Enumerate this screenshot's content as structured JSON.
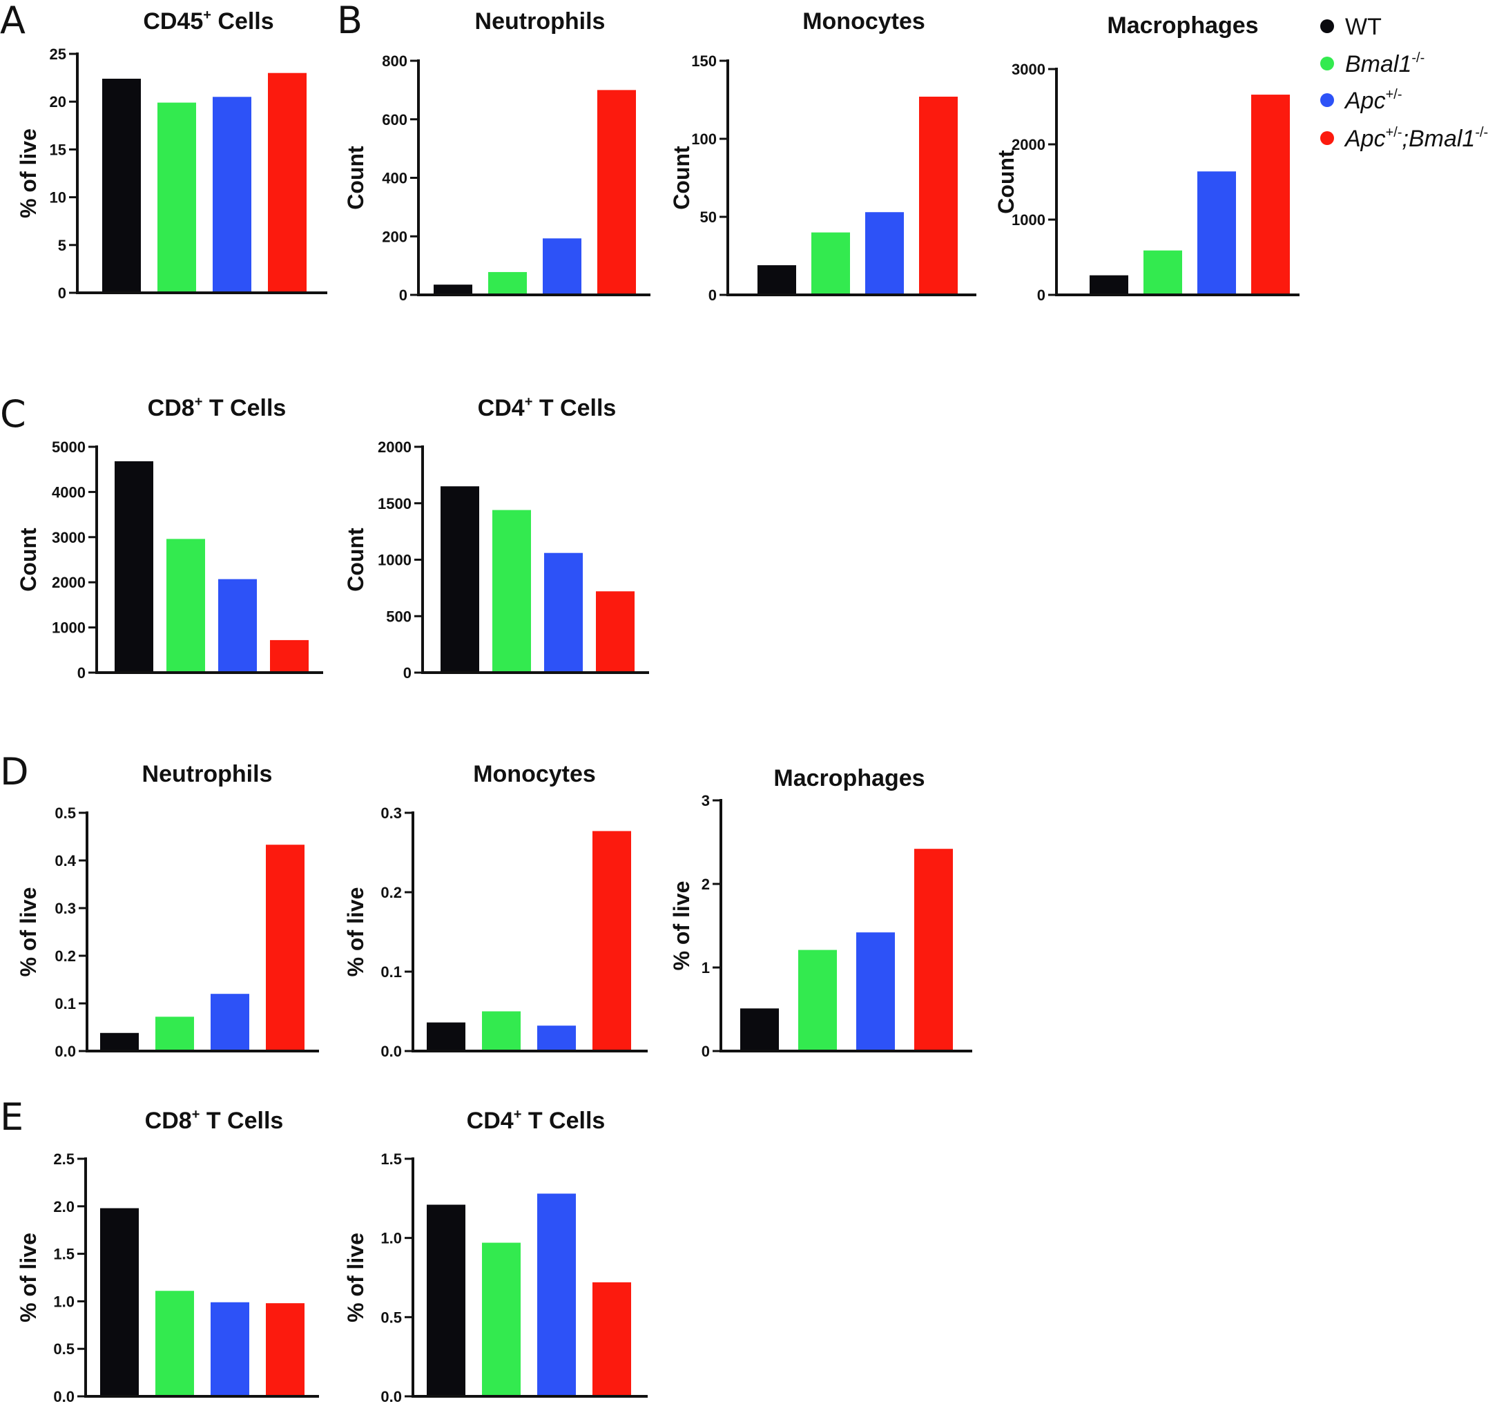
{
  "figure": {
    "panel_letters": [
      "A",
      "B",
      "C",
      "D",
      "E"
    ]
  },
  "legend": {
    "entries": [
      {
        "name": "WT",
        "parts": [
          {
            "t": "WT",
            "s": "n"
          }
        ],
        "color": "#0a0a0e"
      },
      {
        "name": "Bmal1-/-",
        "parts": [
          {
            "t": "Bmal1",
            "s": "i"
          },
          {
            "t": "-/-",
            "s": "sup"
          }
        ],
        "color": "#33ea4f"
      },
      {
        "name": "Apc+/-",
        "parts": [
          {
            "t": "Apc",
            "s": "i"
          },
          {
            "t": "+/-",
            "s": "sup"
          }
        ],
        "color": "#2d52f7"
      },
      {
        "name": "Apc+/-;Bmal1-/-",
        "parts": [
          {
            "t": "Apc",
            "s": "i"
          },
          {
            "t": "+/-",
            "s": "sup"
          },
          {
            "t": ";Bmal1",
            "s": "i"
          },
          {
            "t": "-/-",
            "s": "sup"
          }
        ],
        "color": "#fc1a0e"
      }
    ]
  },
  "chart_data": [
    {
      "id": "A-CD45",
      "panel": "A",
      "type": "bar",
      "title": {
        "main": "CD45",
        "sup": "+",
        "rest": " Cells"
      },
      "xlabel": "",
      "ylabel": "% of live",
      "categories": [
        "WT",
        "Bmal1-/-",
        "Apc+/-",
        "Apc+/-;Bmal1-/-"
      ],
      "values": [
        22.4,
        19.9,
        20.5,
        23.0
      ],
      "ylim": [
        0,
        25
      ],
      "yticks": [
        "0",
        "5",
        "10",
        "15",
        "20",
        "25"
      ],
      "colors": [
        "#0a0a0e",
        "#33ea4f",
        "#2d52f7",
        "#fc1a0e"
      ]
    },
    {
      "id": "B-Neutrophils",
      "panel": "B",
      "type": "bar",
      "title": {
        "main": "Neutrophils",
        "sup": "",
        "rest": ""
      },
      "xlabel": "",
      "ylabel": "Count",
      "categories": [
        "WT",
        "Bmal1-/-",
        "Apc+/-",
        "Apc+/-;Bmal1-/-"
      ],
      "values": [
        35,
        78,
        193,
        700
      ],
      "ylim": [
        0,
        800
      ],
      "yticks": [
        "0",
        "200",
        "400",
        "600",
        "800"
      ],
      "colors": [
        "#0a0a0e",
        "#33ea4f",
        "#2d52f7",
        "#fc1a0e"
      ]
    },
    {
      "id": "B-Monocytes",
      "panel": "B",
      "type": "bar",
      "title": {
        "main": "Monocytes",
        "sup": "",
        "rest": ""
      },
      "xlabel": "",
      "ylabel": "Count",
      "categories": [
        "WT",
        "Bmal1-/-",
        "Apc+/-",
        "Apc+/-;Bmal1-/-"
      ],
      "values": [
        19,
        40,
        53,
        127
      ],
      "ylim": [
        0,
        150
      ],
      "yticks": [
        "0",
        "50",
        "100",
        "150"
      ],
      "colors": [
        "#0a0a0e",
        "#33ea4f",
        "#2d52f7",
        "#fc1a0e"
      ]
    },
    {
      "id": "B-Macrophages",
      "panel": "B",
      "type": "bar",
      "title": {
        "main": "Macrophages",
        "sup": "",
        "rest": ""
      },
      "xlabel": "",
      "ylabel": "Count",
      "categories": [
        "WT",
        "Bmal1-/-",
        "Apc+/-",
        "Apc+/-;Bmal1-/-"
      ],
      "values": [
        260,
        590,
        1640,
        2660
      ],
      "ylim": [
        0,
        3000
      ],
      "yticks": [
        "0",
        "1000",
        "2000",
        "3000"
      ],
      "colors": [
        "#0a0a0e",
        "#33ea4f",
        "#2d52f7",
        "#fc1a0e"
      ]
    },
    {
      "id": "C-CD8",
      "panel": "C",
      "type": "bar",
      "title": {
        "main": "CD8",
        "sup": "+",
        "rest": " T Cells"
      },
      "xlabel": "",
      "ylabel": "Count",
      "categories": [
        "WT",
        "Bmal1-/-",
        "Apc+/-",
        "Apc+/-;Bmal1-/-"
      ],
      "values": [
        4680,
        2960,
        2070,
        720
      ],
      "ylim": [
        0,
        5000
      ],
      "yticks": [
        "0",
        "1000",
        "2000",
        "3000",
        "4000",
        "5000"
      ],
      "colors": [
        "#0a0a0e",
        "#33ea4f",
        "#2d52f7",
        "#fc1a0e"
      ]
    },
    {
      "id": "C-CD4",
      "panel": "C",
      "type": "bar",
      "title": {
        "main": "CD4",
        "sup": "+",
        "rest": " T Cells"
      },
      "xlabel": "",
      "ylabel": "Count",
      "categories": [
        "WT",
        "Bmal1-/-",
        "Apc+/-",
        "Apc+/-;Bmal1-/-"
      ],
      "values": [
        1650,
        1440,
        1060,
        720
      ],
      "ylim": [
        0,
        2000
      ],
      "yticks": [
        "0",
        "500",
        "1000",
        "1500",
        "2000"
      ],
      "colors": [
        "#0a0a0e",
        "#33ea4f",
        "#2d52f7",
        "#fc1a0e"
      ]
    },
    {
      "id": "D-Neutrophils",
      "panel": "D",
      "type": "bar",
      "title": {
        "main": "Neutrophils",
        "sup": "",
        "rest": ""
      },
      "xlabel": "",
      "ylabel": "% of live",
      "categories": [
        "WT",
        "Bmal1-/-",
        "Apc+/-",
        "Apc+/-;Bmal1-/-"
      ],
      "values": [
        0.038,
        0.072,
        0.12,
        0.433
      ],
      "ylim": [
        0,
        0.5
      ],
      "yticks": [
        "0.0",
        "0.1",
        "0.2",
        "0.3",
        "0.4",
        "0.5"
      ],
      "colors": [
        "#0a0a0e",
        "#33ea4f",
        "#2d52f7",
        "#fc1a0e"
      ]
    },
    {
      "id": "D-Monocytes",
      "panel": "D",
      "type": "bar",
      "title": {
        "main": "Monocytes",
        "sup": "",
        "rest": ""
      },
      "xlabel": "",
      "ylabel": "% of live",
      "categories": [
        "WT",
        "Bmal1-/-",
        "Apc+/-",
        "Apc+/-;Bmal1-/-"
      ],
      "values": [
        0.036,
        0.05,
        0.032,
        0.277
      ],
      "ylim": [
        0,
        0.3
      ],
      "yticks": [
        "0.0",
        "0.1",
        "0.2",
        "0.3"
      ],
      "colors": [
        "#0a0a0e",
        "#33ea4f",
        "#2d52f7",
        "#fc1a0e"
      ]
    },
    {
      "id": "D-Macrophages",
      "panel": "D",
      "type": "bar",
      "title": {
        "main": "Macrophages",
        "sup": "",
        "rest": ""
      },
      "xlabel": "",
      "ylabel": "% of live",
      "categories": [
        "WT",
        "Bmal1-/-",
        "Apc+/-",
        "Apc+/-;Bmal1-/-"
      ],
      "values": [
        0.51,
        1.21,
        1.42,
        2.42
      ],
      "ylim": [
        0,
        3
      ],
      "yticks": [
        "0",
        "1",
        "2",
        "3"
      ],
      "colors": [
        "#0a0a0e",
        "#33ea4f",
        "#2d52f7",
        "#fc1a0e"
      ]
    },
    {
      "id": "E-CD8",
      "panel": "E",
      "type": "bar",
      "title": {
        "main": "CD8",
        "sup": "+",
        "rest": " T Cells"
      },
      "xlabel": "",
      "ylabel": "% of live",
      "categories": [
        "WT",
        "Bmal1-/-",
        "Apc+/-",
        "Apc+/-;Bmal1-/-"
      ],
      "values": [
        1.98,
        1.11,
        0.99,
        0.98
      ],
      "ylim": [
        0,
        2.5
      ],
      "yticks": [
        "0.0",
        "0.5",
        "1.0",
        "1.5",
        "2.0",
        "2.5"
      ],
      "colors": [
        "#0a0a0e",
        "#33ea4f",
        "#2d52f7",
        "#fc1a0e"
      ]
    },
    {
      "id": "E-CD4",
      "panel": "E",
      "type": "bar",
      "title": {
        "main": "CD4",
        "sup": "+",
        "rest": " T Cells"
      },
      "xlabel": "",
      "ylabel": "% of live",
      "categories": [
        "WT",
        "Bmal1-/-",
        "Apc+/-",
        "Apc+/-;Bmal1-/-"
      ],
      "values": [
        1.21,
        0.97,
        1.28,
        0.72
      ],
      "ylim": [
        0,
        1.5
      ],
      "yticks": [
        "0.0",
        "0.5",
        "1.0",
        "1.5"
      ],
      "colors": [
        "#0a0a0e",
        "#33ea4f",
        "#2d52f7",
        "#fc1a0e"
      ]
    }
  ]
}
